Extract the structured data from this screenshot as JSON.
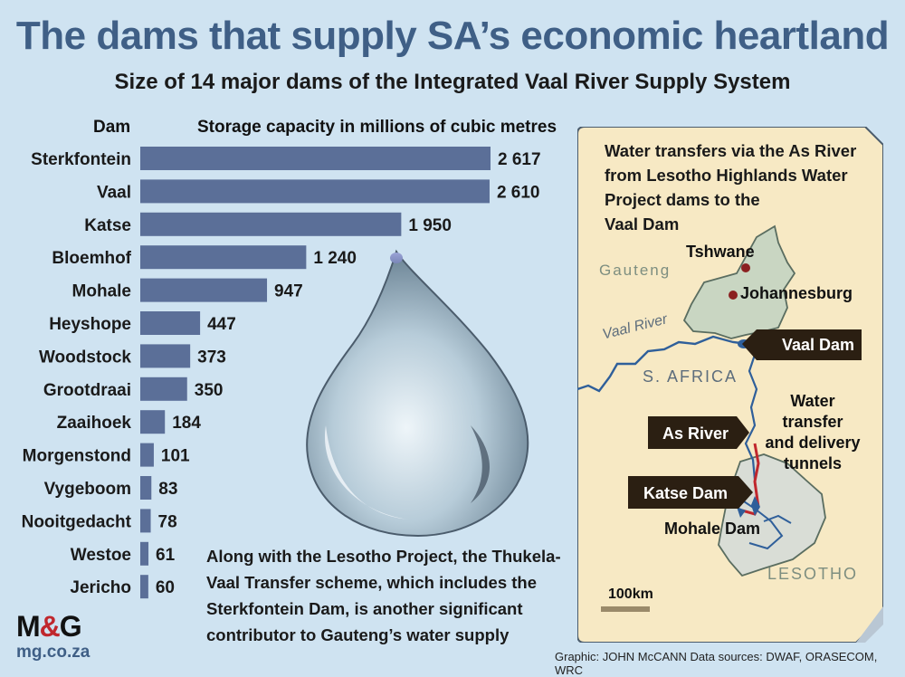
{
  "title": "The dams that supply SA’s economic heartland",
  "subtitle": "Size of 14 major dams of the Integrated Vaal River Supply System",
  "column_headers": {
    "dam": "Dam",
    "capacity": "Storage capacity in millions of cubic metres"
  },
  "colors": {
    "bar": "#5b6f98",
    "title": "#3f5f86",
    "background": "#cfe3f1",
    "map_panel": "#f7e9c4",
    "gauteng": "#c9d6c2",
    "lesotho": "#d9ddd6",
    "river": "#2f5f9a",
    "tunnel": "#c0272d",
    "label_box": "#2b1f12"
  },
  "chart_data": {
    "type": "bar",
    "orientation": "horizontal",
    "categories": [
      "Sterkfontein",
      "Vaal",
      "Katse",
      "Bloemhof",
      "Mohale",
      "Heyshope",
      "Woodstock",
      "Grootdraai",
      "Zaaihoek",
      "Morgenstond",
      "Vygeboom",
      "Nooitgedacht",
      "Westoe",
      "Jericho"
    ],
    "values": [
      2617,
      2610,
      1950,
      1240,
      947,
      447,
      373,
      350,
      184,
      101,
      83,
      78,
      61,
      60
    ],
    "value_labels": [
      "2 617",
      "2 610",
      "1 950",
      "1 240",
      "947",
      "447",
      "373",
      "350",
      "184",
      "101",
      "83",
      "78",
      "61",
      "60"
    ],
    "xlim": [
      0,
      2617
    ],
    "grid": false,
    "legend": "none"
  },
  "note": "Along with the Lesotho Project, the Thukela-Vaal Transfer scheme, which includes the Sterkfontein Dam, is another significant contributor to Gauteng’s water supply",
  "logo": {
    "m": "M",
    "amp": "&",
    "g": "G",
    "url": "mg.co.za"
  },
  "credit": "Graphic: JOHN McCANN  Data sources: DWAF, ORASECOM, WRC",
  "map": {
    "caption": "Water transfers via the As River from Lesotho Highlands Water Project dams to the Vaal Dam",
    "caption_lines": [
      "Water transfers via the As River",
      "from Lesotho Highlands Water",
      "Project dams to the",
      "Vaal Dam"
    ],
    "places": {
      "tshwane": "Tshwane",
      "johannesburg": "Johannesburg",
      "gauteng": "Gauteng",
      "vaal_river": "Vaal River",
      "s_africa": "S. AFRICA",
      "lesotho": "LESOTHO",
      "mohale_dam": "Mohale Dam"
    },
    "tunnel_label_lines": [
      "Water transfer",
      "and delivery",
      "tunnels"
    ],
    "tags": {
      "vaal_dam": "Vaal Dam",
      "as_river": "As River",
      "katse_dam": "Katse Dam"
    },
    "scale": "100km"
  }
}
